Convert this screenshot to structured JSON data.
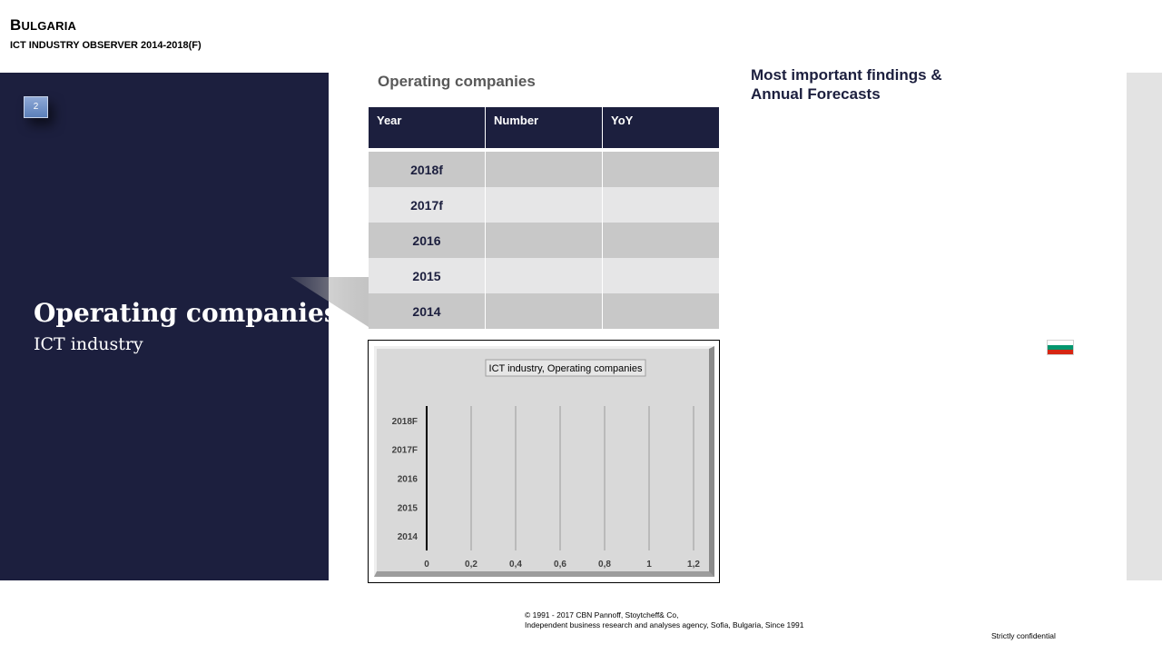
{
  "header": {
    "country_first": "B",
    "country_rest": "ULGARIA",
    "subtitle": "ICT INDUSTRY OBSERVER 2014-2018(F)"
  },
  "sidebar": {
    "page_number": "2",
    "section_title": "Operating companies",
    "section_subtitle": "ICT industry"
  },
  "table": {
    "heading": "Operating companies",
    "columns": [
      "Year",
      "Number",
      "YoY"
    ],
    "rows": [
      {
        "year": "2018f",
        "number": "",
        "yoy": ""
      },
      {
        "year": "2017f",
        "number": "",
        "yoy": ""
      },
      {
        "year": "2016",
        "number": "",
        "yoy": ""
      },
      {
        "year": "2015",
        "number": "",
        "yoy": ""
      },
      {
        "year": "2014",
        "number": "",
        "yoy": ""
      }
    ]
  },
  "chart_data": {
    "type": "bar",
    "orientation": "horizontal",
    "title": "ICT industry, Operating companies",
    "categories": [
      "2018F",
      "2017F",
      "2016",
      "2015",
      "2014"
    ],
    "values": [
      null,
      null,
      null,
      null,
      null
    ],
    "xlim": [
      0,
      1.2
    ],
    "xticks": [
      "0",
      "0,2",
      "0,4",
      "0,6",
      "0,8",
      "1",
      "1,2"
    ],
    "grid": true,
    "legend": "none"
  },
  "findings": {
    "title_line1": "Most important findings &",
    "title_line2": "Annual Forecasts"
  },
  "flag": {
    "icon": "bulgaria-flag-icon",
    "colors": [
      "#ffffff",
      "#00966e",
      "#d62612"
    ]
  },
  "footer": {
    "copyright_line1": "© 1991 - 2017 CBN Pannoff, Stoytcheff& Co,",
    "copyright_line2": "Independent business research and analyses agency, Sofia, Bulgaria, Since 1991",
    "confidential": "Strictly confidential"
  }
}
